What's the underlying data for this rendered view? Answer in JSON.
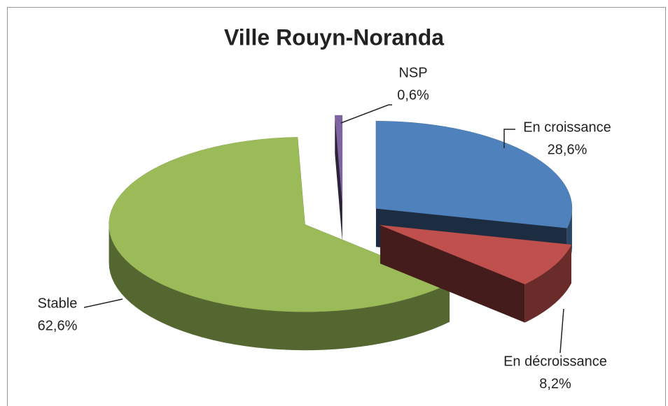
{
  "chart_data": {
    "type": "pie3d",
    "title": "Ville Rouyn-Noranda",
    "categories": [
      "En croissance",
      "En décroissance",
      "Stable",
      "NSP"
    ],
    "values": [
      28.6,
      8.2,
      62.6,
      0.6
    ],
    "value_labels": [
      "28,6%",
      "8,2%",
      "62,6%",
      "0,6%"
    ],
    "colors": [
      "#4f81bd",
      "#c0504d",
      "#9bbb59",
      "#8064a2"
    ]
  }
}
